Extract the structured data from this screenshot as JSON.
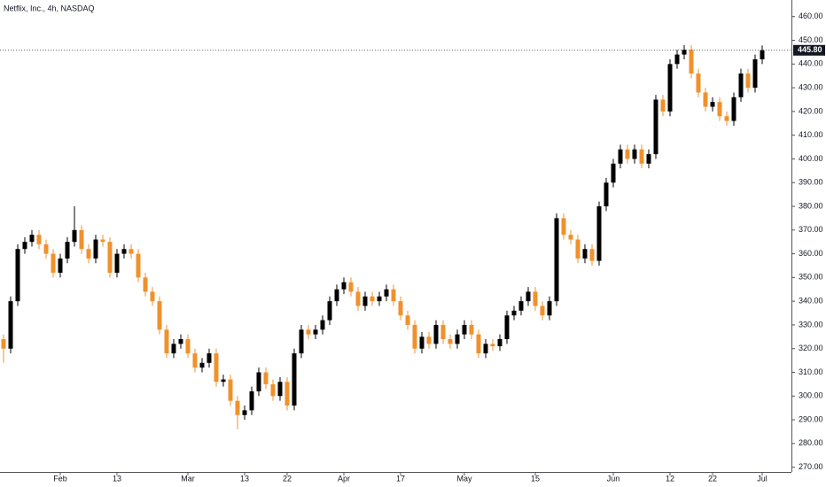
{
  "chart_data": {
    "type": "candlestick",
    "title": "Netflix, Inc., 4h, NASDAQ",
    "up_color": "#000000",
    "down_color": "#f0912c",
    "categories": [
      null,
      null,
      null,
      null,
      null,
      null,
      null,
      null,
      "Feb",
      null,
      null,
      null,
      null,
      null,
      null,
      null,
      "13",
      null,
      null,
      null,
      null,
      null,
      null,
      null,
      null,
      null,
      "Mar",
      null,
      null,
      null,
      null,
      null,
      null,
      null,
      "13",
      null,
      null,
      null,
      null,
      null,
      "22",
      null,
      null,
      null,
      null,
      null,
      null,
      null,
      "Apr",
      null,
      null,
      null,
      null,
      null,
      null,
      null,
      "17",
      null,
      null,
      null,
      null,
      null,
      null,
      null,
      null,
      "May",
      null,
      null,
      null,
      null,
      null,
      null,
      null,
      null,
      null,
      "15",
      null,
      null,
      null,
      null,
      null,
      null,
      null,
      null,
      null,
      null,
      "Jun",
      null,
      null,
      null,
      null,
      null,
      null,
      null,
      "12",
      null,
      null,
      null,
      null,
      null,
      "22",
      null,
      null,
      null,
      null,
      null,
      null,
      "Jul"
    ],
    "open": [
      324,
      320,
      340,
      362,
      365,
      368,
      364,
      360,
      352,
      358,
      365,
      370,
      362,
      358,
      366,
      365,
      352,
      360,
      362,
      360,
      350,
      344,
      340,
      328,
      318,
      322,
      324,
      318,
      312,
      314,
      318,
      306,
      307,
      298,
      292,
      294,
      302,
      310,
      305,
      300,
      306,
      296,
      318,
      328,
      326,
      328,
      332,
      340,
      345,
      348,
      344,
      338,
      342,
      340,
      342,
      345,
      340,
      334,
      330,
      320,
      325,
      322,
      330,
      324,
      322,
      326,
      330,
      326,
      318,
      322,
      321,
      324,
      334,
      336,
      340,
      344,
      338,
      334,
      340,
      375,
      368,
      366,
      358,
      362,
      357,
      380,
      390,
      398,
      404,
      400,
      404,
      398,
      402,
      425,
      420,
      440,
      444,
      446,
      436,
      428,
      422,
      424,
      418,
      416,
      426,
      436,
      430,
      442
    ],
    "high": [
      326,
      342,
      364,
      367,
      370,
      370,
      366,
      362,
      360,
      367,
      380,
      372,
      364,
      368,
      368,
      367,
      362,
      364,
      364,
      362,
      352,
      346,
      342,
      330,
      324,
      326,
      326,
      320,
      316,
      320,
      320,
      309,
      309,
      300,
      296,
      304,
      312,
      312,
      307,
      308,
      308,
      320,
      330,
      330,
      330,
      334,
      342,
      347,
      350,
      350,
      346,
      344,
      344,
      344,
      347,
      347,
      342,
      336,
      332,
      327,
      327,
      332,
      332,
      326,
      328,
      332,
      332,
      328,
      324,
      324,
      326,
      336,
      338,
      342,
      346,
      346,
      340,
      342,
      377,
      377,
      370,
      368,
      364,
      364,
      382,
      392,
      400,
      406,
      406,
      406,
      406,
      404,
      427,
      427,
      442,
      446,
      448,
      448,
      438,
      430,
      426,
      426,
      420,
      428,
      438,
      438,
      444,
      447.8
    ],
    "low": [
      314,
      318,
      338,
      360,
      363,
      362,
      358,
      350,
      350,
      356,
      363,
      360,
      356,
      356,
      363,
      350,
      350,
      358,
      358,
      348,
      342,
      338,
      326,
      316,
      316,
      320,
      316,
      310,
      310,
      312,
      304,
      304,
      296,
      286,
      290,
      292,
      300,
      303,
      298,
      298,
      294,
      294,
      316,
      324,
      324,
      326,
      330,
      338,
      343,
      342,
      336,
      336,
      338,
      338,
      340,
      338,
      332,
      328,
      318,
      318,
      320,
      320,
      322,
      320,
      320,
      324,
      324,
      316,
      316,
      319,
      319,
      322,
      332,
      334,
      338,
      336,
      332,
      332,
      338,
      366,
      364,
      356,
      356,
      355,
      355,
      378,
      388,
      396,
      398,
      398,
      396,
      396,
      400,
      418,
      418,
      438,
      442,
      434,
      426,
      420,
      420,
      416,
      414,
      414,
      424,
      428,
      428,
      440
    ],
    "close": [
      320,
      340,
      362,
      365,
      368,
      364,
      360,
      352,
      358,
      365,
      370,
      362,
      358,
      366,
      365,
      352,
      360,
      362,
      360,
      350,
      344,
      340,
      328,
      318,
      322,
      324,
      318,
      312,
      314,
      318,
      306,
      307,
      298,
      292,
      294,
      302,
      310,
      305,
      300,
      306,
      296,
      318,
      328,
      326,
      328,
      332,
      340,
      345,
      348,
      344,
      338,
      342,
      340,
      342,
      345,
      340,
      334,
      330,
      320,
      325,
      322,
      330,
      324,
      322,
      326,
      330,
      326,
      318,
      322,
      321,
      324,
      334,
      336,
      340,
      344,
      338,
      334,
      340,
      375,
      368,
      366,
      358,
      362,
      357,
      380,
      390,
      398,
      404,
      400,
      404,
      398,
      402,
      425,
      420,
      440,
      444,
      446,
      436,
      428,
      422,
      424,
      418,
      416,
      426,
      436,
      430,
      442,
      445.8
    ],
    "last": {
      "value": 445.8,
      "label": "445.80"
    },
    "ylim": [
      268,
      467
    ],
    "yticks": [
      {
        "value": 270,
        "label": "270.00"
      },
      {
        "value": 280,
        "label": "280.00"
      },
      {
        "value": 290,
        "label": "290.00"
      },
      {
        "value": 300,
        "label": "300.00"
      },
      {
        "value": 310,
        "label": "310.00"
      },
      {
        "value": 320,
        "label": "320.00"
      },
      {
        "value": 330,
        "label": "330.00"
      },
      {
        "value": 340,
        "label": "340.00"
      },
      {
        "value": 350,
        "label": "350.00"
      },
      {
        "value": 360,
        "label": "360.00"
      },
      {
        "value": 370,
        "label": "370.00"
      },
      {
        "value": 380,
        "label": "380.00"
      },
      {
        "value": 390,
        "label": "390.00"
      },
      {
        "value": 400,
        "label": "400.00"
      },
      {
        "value": 410,
        "label": "410.00"
      },
      {
        "value": 420,
        "label": "420.00"
      },
      {
        "value": 430,
        "label": "430.00"
      },
      {
        "value": 440,
        "label": "440.00"
      },
      {
        "value": 450,
        "label": "450.00"
      },
      {
        "value": 460,
        "label": "460.00"
      }
    ]
  }
}
